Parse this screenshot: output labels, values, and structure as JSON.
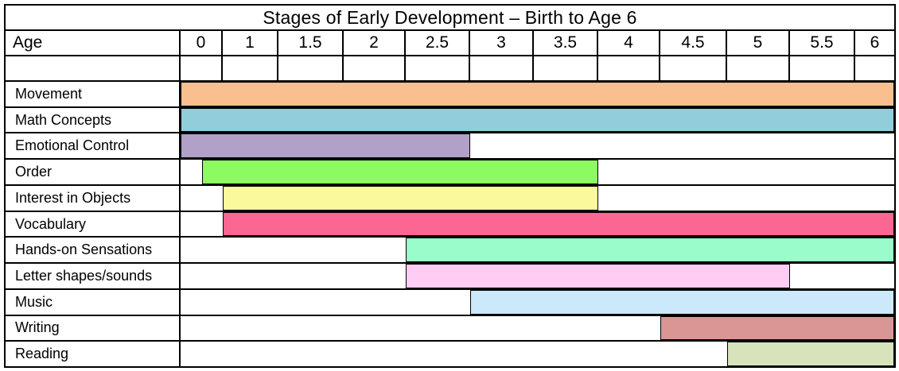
{
  "title": "Stages of Early Development – Birth to Age 6",
  "header": {
    "age_label": "Age",
    "ticks": [
      "0",
      "1",
      "1.5",
      "2",
      "2.5",
      "3",
      "3.5",
      "4",
      "4.5",
      "5",
      "5.5",
      "6"
    ]
  },
  "chart_data": {
    "type": "bar",
    "variant": "horizontal-range-timeline",
    "title": "Stages of Early Development – Birth to Age 6",
    "xlabel": "Age",
    "x_ticks": [
      0,
      1,
      1.5,
      2,
      2.5,
      3,
      3.5,
      4,
      4.5,
      5,
      5.5,
      6
    ],
    "xlim": [
      0,
      6
    ],
    "grid": "column-lines-in-header-only",
    "rows": [
      {
        "label": "Movement",
        "start_age": 0,
        "end_age": 6,
        "color": "#FABF8F"
      },
      {
        "label": "Math Concepts",
        "start_age": 0,
        "end_age": 6,
        "color": "#92CDDC"
      },
      {
        "label": "Emotional Control",
        "start_age": 0,
        "end_age": 3,
        "color": "#B1A0C7"
      },
      {
        "label": "Order",
        "start_age": 0.5,
        "end_age": 4,
        "color": "#8DFA61"
      },
      {
        "label": "Interest in Objects",
        "start_age": 1,
        "end_age": 4,
        "color": "#FAFA9C"
      },
      {
        "label": "Vocabulary",
        "start_age": 1,
        "end_age": 6,
        "color": "#FC6692"
      },
      {
        "label": "Hands-on Sensations",
        "start_age": 2.5,
        "end_age": 6,
        "color": "#99FCCA"
      },
      {
        "label": "Letter shapes/sounds",
        "start_age": 2.5,
        "end_age": 5.5,
        "color": "#FECCF5"
      },
      {
        "label": "Music",
        "start_age": 3,
        "end_age": 6,
        "color": "#CCE9FB"
      },
      {
        "label": "Writing",
        "start_age": 4.5,
        "end_age": 6,
        "color": "#D99694"
      },
      {
        "label": "Reading",
        "start_age": 5,
        "end_age": 6,
        "color": "#D7E4BB"
      }
    ]
  }
}
